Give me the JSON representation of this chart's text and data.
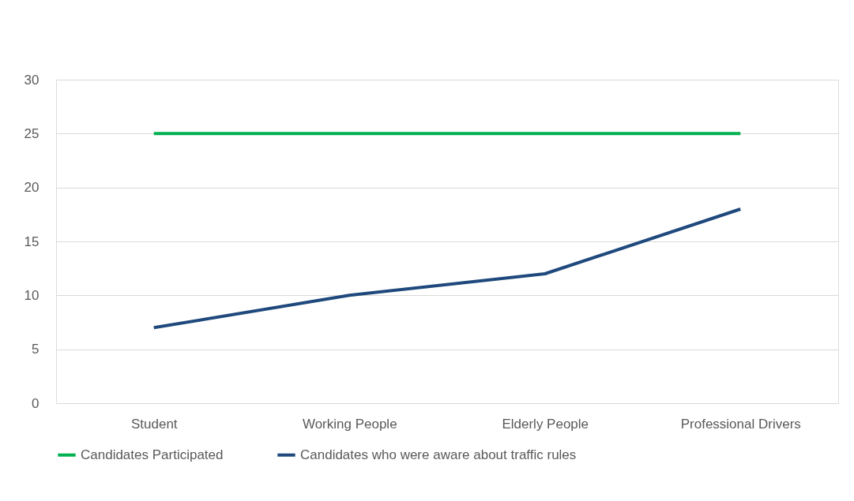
{
  "chart_data": {
    "type": "line",
    "categories": [
      "Student",
      "Working People",
      "Elderly People",
      "Professional Drivers"
    ],
    "series": [
      {
        "name": "Candidates Participated",
        "color": "#00b050",
        "values": [
          25,
          25,
          25,
          25
        ]
      },
      {
        "name": "Candidates who were aware about traffic rules",
        "color": "#1f497d",
        "values": [
          7,
          10,
          12,
          18
        ]
      }
    ],
    "ylim": [
      0,
      30
    ],
    "yticks": [
      0,
      5,
      10,
      15,
      20,
      25,
      30
    ],
    "grid": "y",
    "legend": "bottom",
    "marker": "none",
    "line_style": "solid"
  }
}
